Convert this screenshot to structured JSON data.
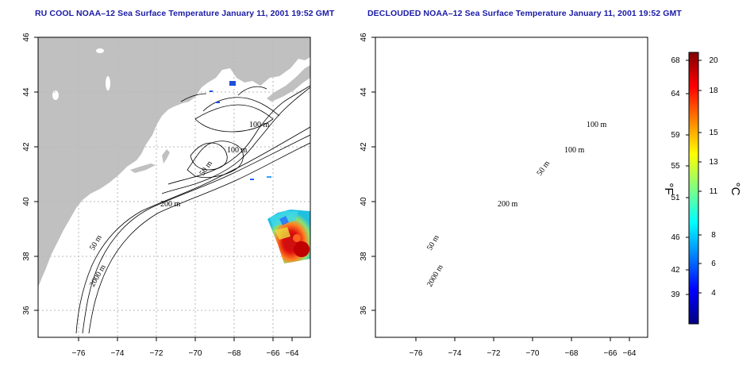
{
  "panels": [
    {
      "title": "RU COOL NOAA–12 Sea Surface Temperature January 11, 2001 19:52 GMT",
      "contour_labels": [
        "100 m",
        "100 m",
        "50 m",
        "200 m",
        "50 m",
        "2000 m"
      ]
    },
    {
      "title": "DECLOUDED NOAA–12 Sea Surface Temperature January 11, 2001 19:52 GMT",
      "contour_labels": [
        "100 m",
        "100 m",
        "50 m",
        "200 m",
        "50 m",
        "2000 m"
      ]
    }
  ],
  "map_axes": {
    "lon_ticks": [
      "−76",
      "−74",
      "−72",
      "−70",
      "−68",
      "−66",
      "−64"
    ],
    "lat_ticks": [
      "36",
      "38",
      "40",
      "42",
      "44",
      "46"
    ],
    "lon_range": [
      -77,
      -63
    ],
    "lat_range": [
      35,
      46
    ],
    "grid": "dotted"
  },
  "colorbar": {
    "fahrenheit_label": "°F",
    "celsius_label": "°C",
    "fahrenheit_ticks": [
      "68",
      "64",
      "59",
      "55",
      "51",
      "46",
      "42",
      "39"
    ],
    "celsius_ticks": [
      "20",
      "18",
      "15",
      "13",
      "11",
      "8",
      "6",
      "4"
    ],
    "colors": [
      "#800000",
      "#ff0000",
      "#ff8000",
      "#ffff00",
      "#80ff80",
      "#00ffff",
      "#0080ff",
      "#0000ff",
      "#000080"
    ]
  },
  "colors": {
    "land": "#c0c0c0",
    "title": "#1a1aa6"
  }
}
